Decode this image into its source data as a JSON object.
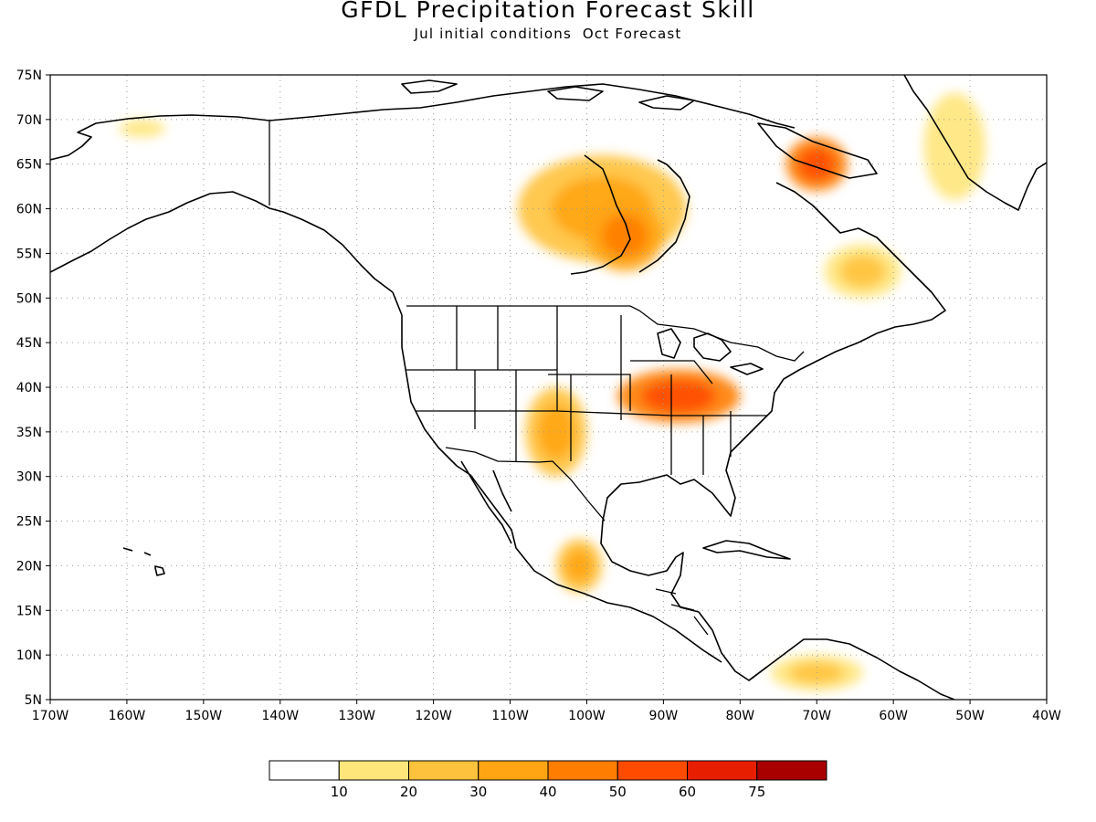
{
  "title": "GFDL Precipitation Forecast Skill",
  "subtitle": "Jul initial conditions  Oct Forecast",
  "map": {
    "region": "North America",
    "projection": "cylindrical equidistant",
    "lon_range": [
      -170,
      -40
    ],
    "lat_range": [
      5,
      75
    ],
    "gridlines": "dotted",
    "lat_ticks": [
      {
        "value": 75,
        "label": "75N"
      },
      {
        "value": 70,
        "label": "70N"
      },
      {
        "value": 65,
        "label": "65N"
      },
      {
        "value": 60,
        "label": "60N"
      },
      {
        "value": 55,
        "label": "55N"
      },
      {
        "value": 50,
        "label": "50N"
      },
      {
        "value": 45,
        "label": "45N"
      },
      {
        "value": 40,
        "label": "40N"
      },
      {
        "value": 35,
        "label": "35N"
      },
      {
        "value": 30,
        "label": "30N"
      },
      {
        "value": 25,
        "label": "25N"
      },
      {
        "value": 20,
        "label": "20N"
      },
      {
        "value": 15,
        "label": "15N"
      },
      {
        "value": 10,
        "label": "10N"
      },
      {
        "value": 5,
        "label": "5N"
      }
    ],
    "lon_ticks": [
      {
        "value": -170,
        "label": "170W"
      },
      {
        "value": -160,
        "label": "160W"
      },
      {
        "value": -150,
        "label": "150W"
      },
      {
        "value": -140,
        "label": "140W"
      },
      {
        "value": -130,
        "label": "130W"
      },
      {
        "value": -120,
        "label": "120W"
      },
      {
        "value": -110,
        "label": "110W"
      },
      {
        "value": -100,
        "label": "100W"
      },
      {
        "value": -90,
        "label": "90W"
      },
      {
        "value": -80,
        "label": "80W"
      },
      {
        "value": -70,
        "label": "70W"
      },
      {
        "value": -60,
        "label": "60W"
      },
      {
        "value": -50,
        "label": "50W"
      },
      {
        "value": -40,
        "label": "40W"
      }
    ],
    "skill_regions": [
      {
        "name": "canada-nw-territories",
        "lon": -98,
        "lat": 60,
        "rx": 11,
        "ry": 6,
        "level": 3
      },
      {
        "name": "hudson-bay-west",
        "lon": -95,
        "lat": 57,
        "rx": 5,
        "ry": 4,
        "level": 4
      },
      {
        "name": "baffin-island",
        "lon": -70,
        "lat": 65,
        "rx": 4,
        "ry": 3,
        "level": 5
      },
      {
        "name": "labrador",
        "lon": -64,
        "lat": 53,
        "rx": 5,
        "ry": 3,
        "level": 2
      },
      {
        "name": "ohio-valley",
        "lon": -88,
        "lat": 39,
        "rx": 8,
        "ry": 3,
        "level": 5
      },
      {
        "name": "southern-rockies",
        "lon": -104,
        "lat": 35,
        "rx": 4,
        "ry": 5,
        "level": 3
      },
      {
        "name": "mexico-south",
        "lon": -101,
        "lat": 20,
        "rx": 3,
        "ry": 3,
        "level": 3
      },
      {
        "name": "alaska-north",
        "lon": -158,
        "lat": 69,
        "rx": 3,
        "ry": 1,
        "level": 1
      },
      {
        "name": "greenland-coast",
        "lon": -52,
        "lat": 67,
        "rx": 4,
        "ry": 6,
        "level": 1
      },
      {
        "name": "northern-south-america",
        "lon": -70,
        "lat": 8,
        "rx": 6,
        "ry": 2,
        "level": 2
      }
    ]
  },
  "colorbar": {
    "colors": [
      "#ffffff",
      "#ffe67a",
      "#ffc23c",
      "#ffa514",
      "#ff7d00",
      "#ff4b00",
      "#e81e00",
      "#a80000"
    ],
    "labels": [
      "10",
      "20",
      "30",
      "40",
      "50",
      "60",
      "75"
    ]
  }
}
